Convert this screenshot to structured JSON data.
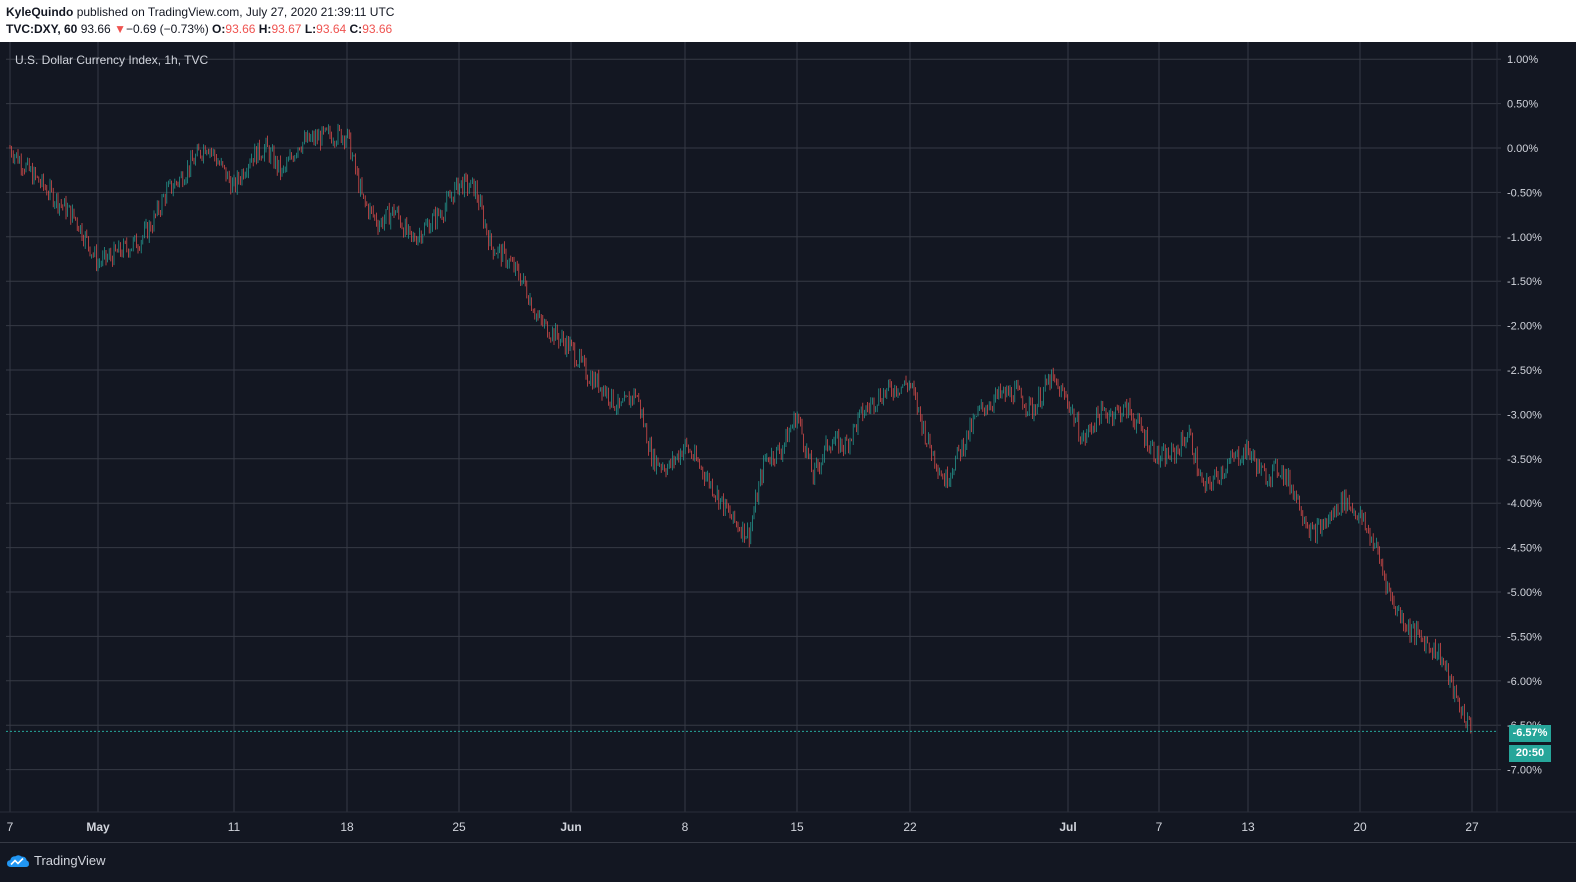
{
  "header": {
    "author": "KyleQuindo",
    "published_text": "published on TradingView.com, July 27, 2020 21:39:11 UTC",
    "symbol": "TVC:DXY, 60",
    "last_price": "93.66",
    "change_arrow": "▼",
    "change_text": "−0.69 (−0.73%)",
    "open_label": "O:",
    "open_value": "93.66",
    "high_label": "H:",
    "high_value": "93.67",
    "low_label": "L:",
    "low_value": "93.64",
    "close_label": "C:",
    "close_value": "93.66"
  },
  "legend": {
    "title": "U.S. Dollar Currency Index, 1h, TVC"
  },
  "current": {
    "percent_label": "-6.57%",
    "time_label": "20:50"
  },
  "footer": {
    "brand": "TradingView",
    "logo_icon": "tradingview-cloud-icon"
  },
  "colors": {
    "background": "#131722",
    "up": "#26a69a",
    "down": "#ef5350",
    "grid": "#363a45",
    "text": "#d1d4dc"
  },
  "chart_data": {
    "type": "candlestick",
    "title": "U.S. Dollar Currency Index, 1h, TVC",
    "y_unit": "% change",
    "ylim": [
      -7.2,
      1.2
    ],
    "y_ticks": [
      "1.00%",
      "0.50%",
      "0.00%",
      "-0.50%",
      "-1.00%",
      "-1.50%",
      "-2.00%",
      "-2.50%",
      "-3.00%",
      "-3.50%",
      "-4.00%",
      "-4.50%",
      "-5.00%",
      "-5.50%",
      "-6.00%",
      "-6.50%",
      "-7.00%"
    ],
    "y_tick_values": [
      1,
      0.5,
      0,
      -0.5,
      -1,
      -1.5,
      -2,
      -2.5,
      -3,
      -3.5,
      -4,
      -4.5,
      -5,
      -5.5,
      -6,
      -6.5,
      -7
    ],
    "x_ticks": [
      "7",
      "May",
      "11",
      "18",
      "25",
      "Jun",
      "8",
      "15",
      "22",
      "Jul",
      "7",
      "13",
      "20",
      "27"
    ],
    "x_tick_dates": [
      "2020-04-27",
      "2020-05-01",
      "2020-05-11",
      "2020-05-18",
      "2020-05-25",
      "2020-06-01",
      "2020-06-08",
      "2020-06-15",
      "2020-06-22",
      "2020-07-01",
      "2020-07-07",
      "2020-07-13",
      "2020-07-20",
      "2020-07-27"
    ],
    "grid": true,
    "last_value": -6.57,
    "path": [
      {
        "date": "2020-04-27",
        "pct": 0.0
      },
      {
        "date": "2020-04-28",
        "pct": -0.3
      },
      {
        "date": "2020-04-29",
        "pct": -0.55
      },
      {
        "date": "2020-04-30",
        "pct": -0.8
      },
      {
        "date": "2020-05-01",
        "pct": -1.3
      },
      {
        "date": "2020-05-04",
        "pct": -1.05
      },
      {
        "date": "2020-05-05",
        "pct": -0.85
      },
      {
        "date": "2020-05-06",
        "pct": -0.5
      },
      {
        "date": "2020-05-07",
        "pct": -0.35
      },
      {
        "date": "2020-05-08",
        "pct": -0.15
      },
      {
        "date": "2020-05-09",
        "pct": 0.05
      },
      {
        "date": "2020-05-11",
        "pct": -0.45
      },
      {
        "date": "2020-05-12",
        "pct": -0.1
      },
      {
        "date": "2020-05-13",
        "pct": 0.0
      },
      {
        "date": "2020-05-14",
        "pct": -0.3
      },
      {
        "date": "2020-05-15",
        "pct": 0.05
      },
      {
        "date": "2020-05-17",
        "pct": 0.15
      },
      {
        "date": "2020-05-18",
        "pct": 0.15
      },
      {
        "date": "2020-05-19",
        "pct": -0.6
      },
      {
        "date": "2020-05-20",
        "pct": -0.85
      },
      {
        "date": "2020-05-21",
        "pct": -0.7
      },
      {
        "date": "2020-05-22",
        "pct": -1.05
      },
      {
        "date": "2020-05-24",
        "pct": -0.7
      },
      {
        "date": "2020-05-25",
        "pct": -0.4
      },
      {
        "date": "2020-05-26",
        "pct": -0.45
      },
      {
        "date": "2020-05-27",
        "pct": -1.1
      },
      {
        "date": "2020-05-28",
        "pct": -1.25
      },
      {
        "date": "2020-05-29",
        "pct": -1.5
      },
      {
        "date": "2020-05-30",
        "pct": -1.95
      },
      {
        "date": "2020-06-01",
        "pct": -2.25
      },
      {
        "date": "2020-06-02",
        "pct": -2.55
      },
      {
        "date": "2020-06-03",
        "pct": -2.7
      },
      {
        "date": "2020-06-04",
        "pct": -2.95
      },
      {
        "date": "2020-06-05",
        "pct": -2.75
      },
      {
        "date": "2020-06-06",
        "pct": -3.5
      },
      {
        "date": "2020-06-07",
        "pct": -3.6
      },
      {
        "date": "2020-06-08",
        "pct": -3.35
      },
      {
        "date": "2020-06-09",
        "pct": -3.6
      },
      {
        "date": "2020-06-10",
        "pct": -3.9
      },
      {
        "date": "2020-06-11",
        "pct": -4.2
      },
      {
        "date": "2020-06-12",
        "pct": -4.35
      },
      {
        "date": "2020-06-13",
        "pct": -3.5
      },
      {
        "date": "2020-06-14",
        "pct": -3.4
      },
      {
        "date": "2020-06-15",
        "pct": -3.0
      },
      {
        "date": "2020-06-16",
        "pct": -3.7
      },
      {
        "date": "2020-06-17",
        "pct": -3.3
      },
      {
        "date": "2020-06-18",
        "pct": -3.35
      },
      {
        "date": "2020-06-19",
        "pct": -3.0
      },
      {
        "date": "2020-06-20",
        "pct": -2.8
      },
      {
        "date": "2020-06-21",
        "pct": -2.7
      },
      {
        "date": "2020-06-22",
        "pct": -2.65
      },
      {
        "date": "2020-06-23",
        "pct": -3.3
      },
      {
        "date": "2020-06-24",
        "pct": -3.75
      },
      {
        "date": "2020-06-25",
        "pct": -3.35
      },
      {
        "date": "2020-06-26",
        "pct": -2.95
      },
      {
        "date": "2020-06-27",
        "pct": -2.8
      },
      {
        "date": "2020-06-28",
        "pct": -2.75
      },
      {
        "date": "2020-06-29",
        "pct": -2.95
      },
      {
        "date": "2020-06-30",
        "pct": -2.6
      },
      {
        "date": "2020-07-01",
        "pct": -2.85
      },
      {
        "date": "2020-07-02",
        "pct": -3.3
      },
      {
        "date": "2020-07-03",
        "pct": -3.0
      },
      {
        "date": "2020-07-05",
        "pct": -2.95
      },
      {
        "date": "2020-07-07",
        "pct": -3.5
      },
      {
        "date": "2020-07-08",
        "pct": -3.45
      },
      {
        "date": "2020-07-09",
        "pct": -3.2
      },
      {
        "date": "2020-07-10",
        "pct": -3.85
      },
      {
        "date": "2020-07-12",
        "pct": -3.5
      },
      {
        "date": "2020-07-13",
        "pct": -3.4
      },
      {
        "date": "2020-07-14",
        "pct": -3.7
      },
      {
        "date": "2020-07-15",
        "pct": -3.6
      },
      {
        "date": "2020-07-16",
        "pct": -3.9
      },
      {
        "date": "2020-07-17",
        "pct": -4.35
      },
      {
        "date": "2020-07-18",
        "pct": -4.2
      },
      {
        "date": "2020-07-19",
        "pct": -3.95
      },
      {
        "date": "2020-07-20",
        "pct": -4.15
      },
      {
        "date": "2020-07-21",
        "pct": -4.5
      },
      {
        "date": "2020-07-22",
        "pct": -5.1
      },
      {
        "date": "2020-07-23",
        "pct": -5.4
      },
      {
        "date": "2020-07-24",
        "pct": -5.55
      },
      {
        "date": "2020-07-25",
        "pct": -5.7
      },
      {
        "date": "2020-07-26",
        "pct": -6.2
      },
      {
        "date": "2020-07-27",
        "pct": -6.57
      }
    ]
  }
}
